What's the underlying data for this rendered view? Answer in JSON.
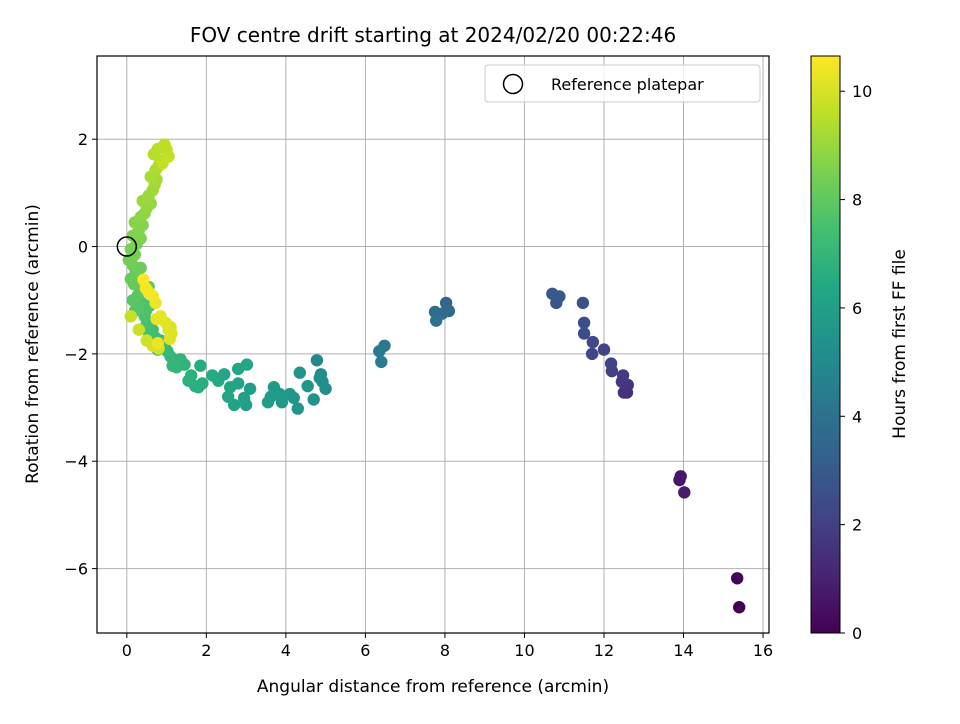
{
  "chart_data": {
    "type": "scatter",
    "title": "FOV centre drift starting at 2024/02/20 00:22:46",
    "xlabel": "Angular distance from reference (arcmin)",
    "ylabel": "Rotation from reference (arcmin)",
    "xlim": [
      -0.75,
      16.15
    ],
    "ylim": [
      -7.2,
      3.55
    ],
    "xticks": [
      0,
      2,
      4,
      6,
      8,
      10,
      12,
      14,
      16
    ],
    "xtick_labels": [
      "0",
      "2",
      "4",
      "6",
      "8",
      "10",
      "12",
      "14",
      "16"
    ],
    "yticks": [
      -6,
      -4,
      -2,
      0,
      2
    ],
    "ytick_labels": [
      "−6",
      "−4",
      "−2",
      "0",
      "2"
    ],
    "grid": true,
    "legend": {
      "position": "top-right",
      "entries": [
        "Reference platepar"
      ]
    },
    "reference_point": {
      "x": 0,
      "y": 0
    },
    "colorbar": {
      "label": "Hours from first FF file",
      "colormap": "viridis",
      "range": [
        0,
        10.65
      ],
      "ticks": [
        0,
        2,
        4,
        6,
        8,
        10
      ],
      "tick_labels": [
        "0",
        "2",
        "4",
        "6",
        "8",
        "10"
      ]
    },
    "points": [
      [
        15.4,
        -6.72,
        0.0
      ],
      [
        15.35,
        -6.18,
        0.15
      ],
      [
        13.9,
        -4.35,
        0.55
      ],
      [
        13.93,
        -4.28,
        0.65
      ],
      [
        14.02,
        -4.58,
        0.75
      ],
      [
        12.58,
        -2.72,
        1.4
      ],
      [
        12.5,
        -2.72,
        1.5
      ],
      [
        12.6,
        -2.58,
        1.6
      ],
      [
        12.45,
        -2.52,
        1.7
      ],
      [
        12.48,
        -2.4,
        1.8
      ],
      [
        12.2,
        -2.32,
        1.95
      ],
      [
        12.18,
        -2.18,
        2.05
      ],
      [
        12.0,
        -1.92,
        2.15
      ],
      [
        11.7,
        -2.0,
        2.25
      ],
      [
        11.72,
        -1.78,
        2.35
      ],
      [
        11.5,
        -1.62,
        2.45
      ],
      [
        11.5,
        -1.42,
        2.55
      ],
      [
        11.47,
        -1.05,
        2.65
      ],
      [
        10.8,
        -1.05,
        2.8
      ],
      [
        10.88,
        -0.93,
        2.9
      ],
      [
        10.7,
        -0.88,
        3.0
      ],
      [
        8.03,
        -1.05,
        3.5
      ],
      [
        8.1,
        -1.2,
        3.6
      ],
      [
        7.93,
        -1.25,
        3.7
      ],
      [
        7.75,
        -1.22,
        3.8
      ],
      [
        7.78,
        -1.38,
        3.9
      ],
      [
        6.48,
        -1.85,
        4.25
      ],
      [
        6.35,
        -1.95,
        4.35
      ],
      [
        6.4,
        -2.15,
        4.45
      ],
      [
        4.78,
        -2.12,
        5.0
      ],
      [
        4.88,
        -2.38,
        5.1
      ],
      [
        5.0,
        -2.65,
        5.2
      ],
      [
        4.92,
        -2.52,
        5.25
      ],
      [
        4.85,
        -2.45,
        5.3
      ],
      [
        4.7,
        -2.85,
        5.4
      ],
      [
        4.55,
        -2.6,
        5.45
      ],
      [
        4.35,
        -2.35,
        5.5
      ],
      [
        4.3,
        -3.02,
        5.55
      ],
      [
        4.2,
        -2.82,
        5.6
      ],
      [
        4.1,
        -2.75,
        5.65
      ],
      [
        3.9,
        -2.9,
        5.7
      ],
      [
        3.85,
        -2.75,
        5.75
      ],
      [
        3.7,
        -2.62,
        5.8
      ],
      [
        3.62,
        -2.8,
        5.85
      ],
      [
        3.55,
        -2.9,
        5.9
      ],
      [
        3.1,
        -2.65,
        5.95
      ],
      [
        3.0,
        -2.95,
        6.0
      ],
      [
        2.95,
        -2.82,
        6.05
      ],
      [
        2.8,
        -2.55,
        6.1
      ],
      [
        2.7,
        -2.95,
        6.15
      ],
      [
        2.55,
        -2.8,
        6.2
      ],
      [
        2.6,
        -2.62,
        6.25
      ],
      [
        3.02,
        -2.2,
        6.3
      ],
      [
        2.8,
        -2.28,
        6.35
      ],
      [
        2.45,
        -2.38,
        6.4
      ],
      [
        2.3,
        -2.5,
        6.45
      ],
      [
        2.15,
        -2.4,
        6.5
      ],
      [
        1.85,
        -2.22,
        6.55
      ],
      [
        1.9,
        -2.55,
        6.6
      ],
      [
        1.8,
        -2.62,
        6.65
      ],
      [
        1.72,
        -2.6,
        6.7
      ],
      [
        1.62,
        -2.4,
        6.75
      ],
      [
        1.55,
        -2.5,
        6.8
      ],
      [
        1.45,
        -2.2,
        6.85
      ],
      [
        1.35,
        -2.1,
        6.9
      ],
      [
        1.25,
        -2.25,
        6.95
      ],
      [
        1.15,
        -2.22,
        7.0
      ],
      [
        1.1,
        -2.05,
        7.05
      ],
      [
        1.02,
        -1.95,
        7.1
      ],
      [
        0.95,
        -1.85,
        7.15
      ],
      [
        0.85,
        -1.75,
        7.2
      ],
      [
        0.78,
        -1.92,
        7.25
      ],
      [
        0.72,
        -1.7,
        7.3
      ],
      [
        0.65,
        -1.55,
        7.35
      ],
      [
        0.62,
        -1.78,
        7.4
      ],
      [
        0.55,
        -1.6,
        7.45
      ],
      [
        0.5,
        -1.45,
        7.5
      ],
      [
        0.45,
        -1.3,
        7.55
      ],
      [
        0.58,
        -1.1,
        7.6
      ],
      [
        0.48,
        -1.2,
        7.65
      ],
      [
        0.38,
        -1.05,
        7.7
      ],
      [
        0.3,
        -1.15,
        7.75
      ],
      [
        0.2,
        -1.2,
        7.8
      ],
      [
        0.15,
        -1.0,
        7.85
      ],
      [
        0.28,
        -0.9,
        7.9
      ],
      [
        0.4,
        -0.82,
        7.95
      ],
      [
        0.55,
        -0.75,
        8.0
      ],
      [
        0.3,
        -0.65,
        8.05
      ],
      [
        0.18,
        -0.7,
        8.1
      ],
      [
        0.1,
        -0.6,
        8.15
      ],
      [
        0.22,
        -0.48,
        8.2
      ],
      [
        0.35,
        -0.4,
        8.25
      ],
      [
        0.15,
        -0.35,
        8.3
      ],
      [
        0.05,
        -0.25,
        8.35
      ],
      [
        0.2,
        -0.15,
        8.4
      ],
      [
        0.1,
        -0.05,
        8.45
      ],
      [
        0.25,
        0.05,
        8.5
      ],
      [
        0.35,
        0.15,
        8.55
      ],
      [
        0.15,
        0.2,
        8.6
      ],
      [
        0.3,
        0.3,
        8.65
      ],
      [
        0.4,
        0.4,
        8.7
      ],
      [
        0.2,
        0.45,
        8.75
      ],
      [
        0.35,
        0.55,
        8.8
      ],
      [
        0.45,
        0.62,
        8.85
      ],
      [
        0.5,
        0.72,
        8.9
      ],
      [
        0.6,
        0.8,
        8.95
      ],
      [
        0.4,
        0.85,
        9.0
      ],
      [
        0.55,
        0.95,
        9.05
      ],
      [
        0.65,
        1.05,
        9.1
      ],
      [
        0.7,
        1.15,
        9.15
      ],
      [
        0.75,
        1.25,
        9.2
      ],
      [
        0.6,
        1.3,
        9.25
      ],
      [
        0.72,
        1.42,
        9.3
      ],
      [
        0.8,
        1.5,
        9.35
      ],
      [
        0.85,
        1.6,
        9.4
      ],
      [
        0.68,
        1.72,
        9.45
      ],
      [
        0.78,
        1.82,
        9.5
      ],
      [
        0.95,
        1.9,
        9.55
      ],
      [
        1.0,
        1.8,
        9.6
      ],
      [
        1.05,
        1.68,
        9.65
      ],
      [
        0.9,
        1.55,
        9.7
      ],
      [
        0.1,
        -1.3,
        9.75
      ],
      [
        0.3,
        -1.55,
        9.8
      ],
      [
        0.5,
        -1.75,
        9.85
      ],
      [
        0.65,
        -1.85,
        9.9
      ],
      [
        0.8,
        -1.9,
        9.95
      ],
      [
        1.05,
        -1.55,
        10.0
      ],
      [
        1.1,
        -1.5,
        10.05
      ],
      [
        1.12,
        -1.62,
        10.1
      ],
      [
        1.08,
        -1.72,
        10.15
      ],
      [
        0.98,
        -1.42,
        10.2
      ],
      [
        0.85,
        -1.3,
        10.25
      ],
      [
        0.75,
        -1.35,
        10.3
      ],
      [
        0.78,
        -1.8,
        10.35
      ],
      [
        0.72,
        -1.05,
        10.4
      ],
      [
        0.65,
        -0.92,
        10.45
      ],
      [
        0.55,
        -0.85,
        10.5
      ],
      [
        0.48,
        -0.78,
        10.55
      ],
      [
        0.42,
        -0.62,
        10.6
      ]
    ]
  }
}
